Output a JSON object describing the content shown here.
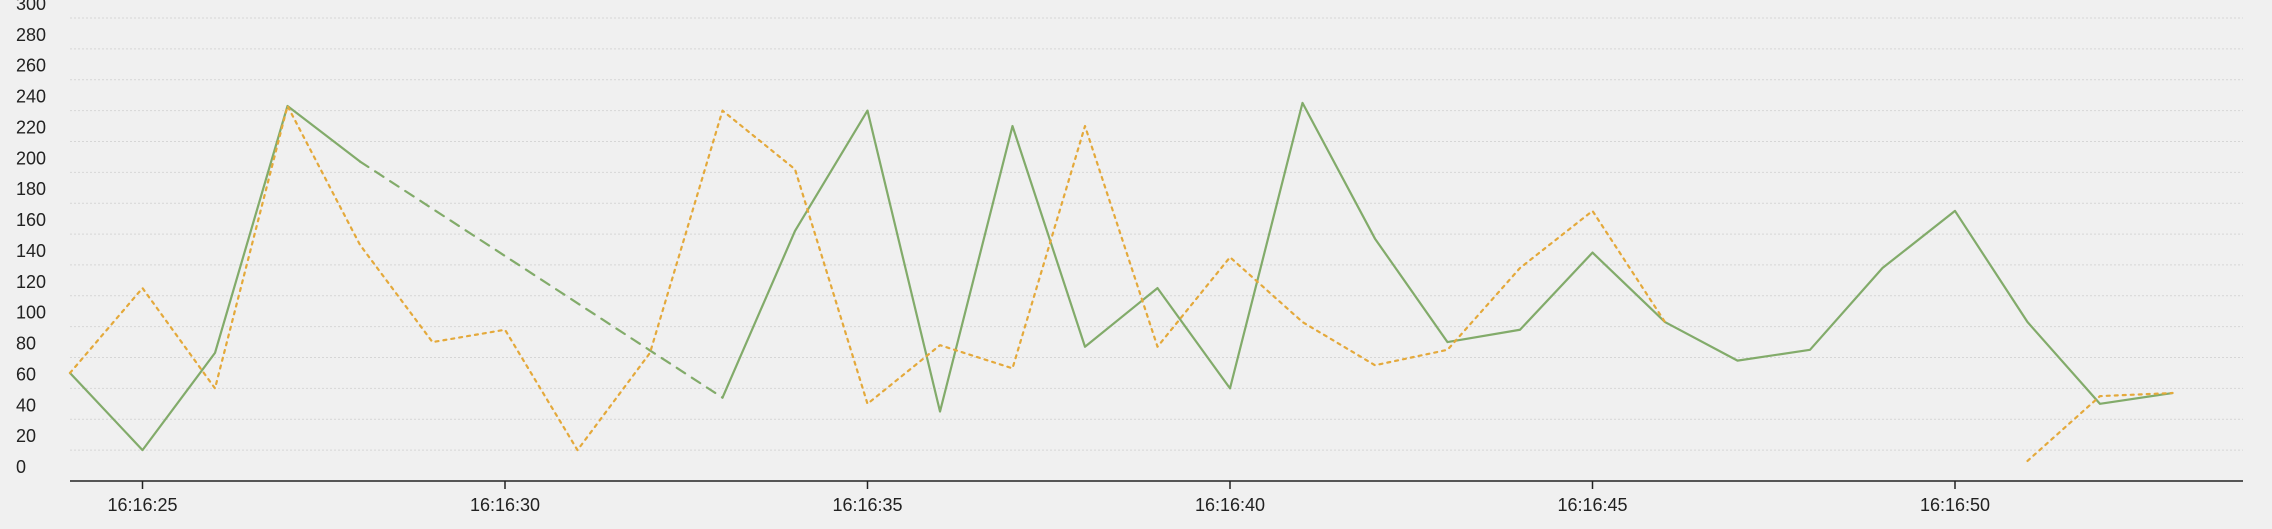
{
  "chart_data": {
    "type": "line",
    "x": [
      "16:16:24",
      "16:16:25",
      "16:16:26",
      "16:16:27",
      "16:16:28",
      "16:16:29",
      "16:16:30",
      "16:16:31",
      "16:16:32",
      "16:16:33",
      "16:16:34",
      "16:16:35",
      "16:16:36",
      "16:16:37",
      "16:16:38",
      "16:16:39",
      "16:16:40",
      "16:16:41",
      "16:16:42",
      "16:16:43",
      "16:16:44",
      "16:16:45",
      "16:16:46",
      "16:16:47",
      "16:16:48",
      "16:16:49",
      "16:16:50",
      "16:16:51",
      "16:16:52",
      "16:16:53"
    ],
    "x_tick_labels": [
      "16:16:25",
      "16:16:30",
      "16:16:35",
      "16:16:40",
      "16:16:45",
      "16:16:50"
    ],
    "y_tick_labels": [
      "0",
      "20",
      "40",
      "60",
      "80",
      "100",
      "120",
      "140",
      "160",
      "180",
      "200",
      "220",
      "240",
      "260",
      "280",
      "300"
    ],
    "ylim": [
      0,
      300
    ],
    "grid": true,
    "series": [
      {
        "color": "#82ab6a",
        "style": "solid",
        "gap_style": "dashed",
        "values": [
          70,
          20,
          83,
          243,
          207,
          null,
          null,
          null,
          null,
          54,
          162,
          240,
          45,
          230,
          87,
          125,
          60,
          245,
          157,
          90,
          98,
          148,
          103,
          78,
          85,
          138,
          175,
          103,
          50,
          57
        ]
      },
      {
        "color": "#e4a93b",
        "style": "dotted",
        "values": [
          70,
          125,
          60,
          243,
          153,
          90,
          98,
          20,
          83,
          240,
          202,
          50,
          88,
          73,
          230,
          87,
          145,
          103,
          75,
          85,
          138,
          175,
          103,
          null,
          null,
          null,
          null,
          13,
          55,
          57
        ]
      }
    ]
  }
}
